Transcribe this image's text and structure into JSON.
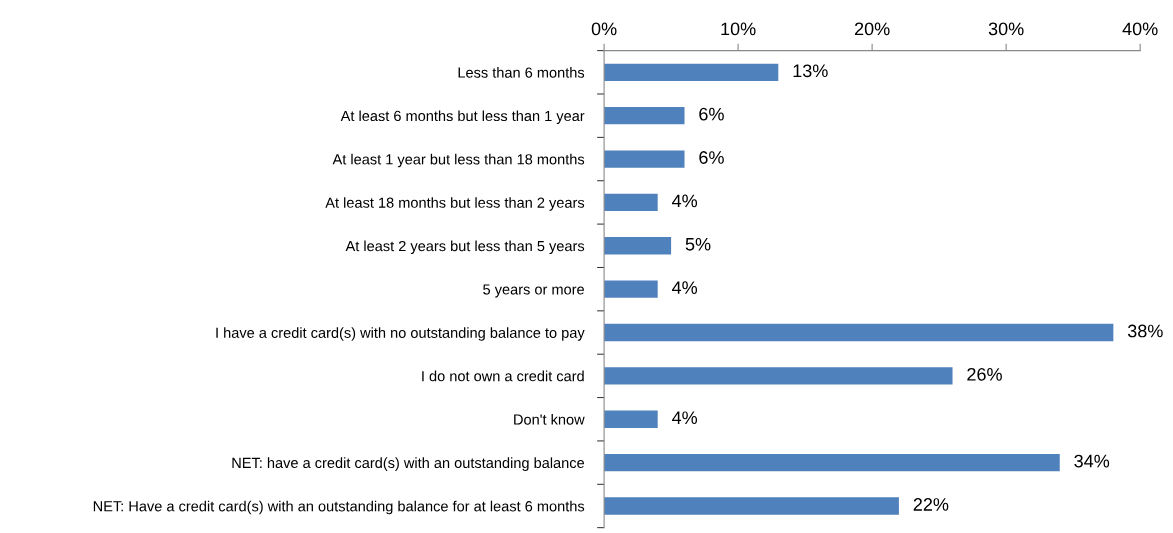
{
  "chart_data": {
    "type": "bar",
    "orientation": "horizontal",
    "categories": [
      "Less than 6 months",
      "At least 6 months but less than 1 year",
      "At least 1 year but less than 18 months",
      "At least 18 months but less than 2 years",
      "At least 2 years but less than 5 years",
      "5 years or more",
      "I have a credit card(s) with no outstanding balance to pay",
      "I do not own a credit card",
      "Don't know",
      "NET: have a credit card(s) with an outstanding balance",
      "NET: Have a credit card(s) with an outstanding balance for at least 6 months"
    ],
    "values": [
      13,
      6,
      6,
      4,
      5,
      4,
      38,
      26,
      4,
      34,
      22
    ],
    "value_labels": [
      "13%",
      "6%",
      "6%",
      "4%",
      "5%",
      "4%",
      "38%",
      "26%",
      "4%",
      "34%",
      "22%"
    ],
    "color": "#4f81bd",
    "xlim": [
      0,
      40
    ],
    "xticks": [
      {
        "value": 0,
        "label": "0%"
      },
      {
        "value": 10,
        "label": "10%"
      },
      {
        "value": 20,
        "label": "20%"
      },
      {
        "value": 30,
        "label": "30%"
      },
      {
        "value": 40,
        "label": "40%"
      }
    ],
    "grid": false,
    "legend": false
  }
}
